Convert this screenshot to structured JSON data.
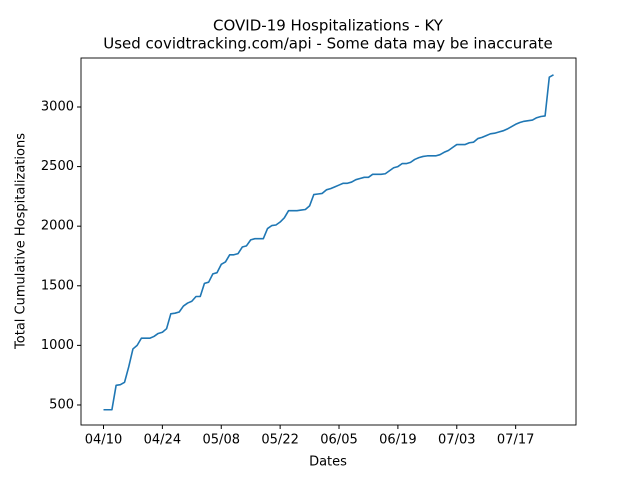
{
  "chart_data": {
    "type": "line",
    "title": "COVID-19 Hospitalizations - KY",
    "subtitle": "Used covidtracking.com/api - Some data may be inaccurate",
    "xlabel": "Dates",
    "ylabel": "Total Cumulative Hospitalizations",
    "x": [
      "04/10",
      "04/11",
      "04/12",
      "04/13",
      "04/14",
      "04/15",
      "04/16",
      "04/17",
      "04/18",
      "04/19",
      "04/20",
      "04/21",
      "04/22",
      "04/23",
      "04/24",
      "04/25",
      "04/26",
      "04/27",
      "04/28",
      "04/29",
      "04/30",
      "05/01",
      "05/02",
      "05/03",
      "05/04",
      "05/05",
      "05/06",
      "05/07",
      "05/08",
      "05/09",
      "05/10",
      "05/11",
      "05/12",
      "05/13",
      "05/14",
      "05/15",
      "05/16",
      "05/17",
      "05/18",
      "05/19",
      "05/20",
      "05/21",
      "05/22",
      "05/23",
      "05/24",
      "05/25",
      "05/26",
      "05/27",
      "05/28",
      "05/29",
      "05/30",
      "05/31",
      "06/01",
      "06/02",
      "06/03",
      "06/04",
      "06/05",
      "06/06",
      "06/07",
      "06/08",
      "06/09",
      "06/10",
      "06/11",
      "06/12",
      "06/13",
      "06/14",
      "06/15",
      "06/16",
      "06/17",
      "06/18",
      "06/19",
      "06/20",
      "06/21",
      "06/22",
      "06/23",
      "06/24",
      "06/25",
      "06/26",
      "06/27",
      "06/28",
      "06/29",
      "06/30",
      "07/01",
      "07/02",
      "07/03",
      "07/04",
      "07/05",
      "07/06",
      "07/07",
      "07/08",
      "07/09",
      "07/10",
      "07/11",
      "07/12",
      "07/13",
      "07/14",
      "07/15",
      "07/16",
      "07/17",
      "07/18",
      "07/19",
      "07/20",
      "07/21",
      "07/22",
      "07/23",
      "07/24",
      "07/25",
      "07/26"
    ],
    "series": [
      {
        "color": "#1f77b4",
        "values": [
          460,
          460,
          460,
          665,
          670,
          690,
          820,
          970,
          1000,
          1060,
          1060,
          1060,
          1075,
          1100,
          1110,
          1140,
          1265,
          1270,
          1280,
          1330,
          1355,
          1370,
          1410,
          1410,
          1520,
          1530,
          1600,
          1610,
          1680,
          1700,
          1760,
          1760,
          1770,
          1825,
          1835,
          1885,
          1895,
          1895,
          1895,
          1980,
          2005,
          2010,
          2035,
          2070,
          2130,
          2130,
          2130,
          2135,
          2140,
          2170,
          2265,
          2270,
          2275,
          2305,
          2315,
          2330,
          2345,
          2360,
          2360,
          2370,
          2390,
          2400,
          2410,
          2410,
          2435,
          2435,
          2435,
          2440,
          2465,
          2490,
          2500,
          2525,
          2525,
          2535,
          2560,
          2575,
          2585,
          2590,
          2590,
          2590,
          2600,
          2620,
          2635,
          2660,
          2685,
          2685,
          2685,
          2700,
          2705,
          2735,
          2745,
          2760,
          2775,
          2780,
          2790,
          2800,
          2815,
          2835,
          2855,
          2870,
          2880,
          2885,
          2890,
          2910,
          2920,
          2925,
          3250,
          3270
        ]
      }
    ],
    "xticks": [
      "04/10",
      "04/24",
      "05/08",
      "05/22",
      "06/05",
      "06/19",
      "07/03",
      "07/17"
    ],
    "ylim": [
      332,
      3411
    ],
    "yticks": [
      500,
      1000,
      1500,
      2000,
      2500,
      3000
    ]
  }
}
